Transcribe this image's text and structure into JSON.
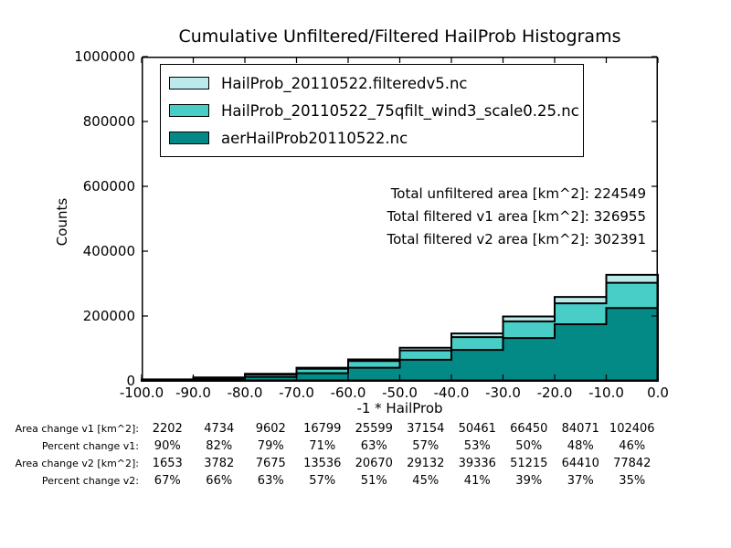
{
  "title": "Cumulative Unfiltered/Filtered HailProb Histograms",
  "chart_data": {
    "type": "area",
    "subtype": "cumulative-step-histograms-overlaid",
    "title": "Cumulative Unfiltered/Filtered HailProb Histograms",
    "xlabel": "-1 * HailProb",
    "ylabel": "Counts",
    "xlim": [
      -100.0,
      0.0
    ],
    "ylim": [
      0,
      1000000
    ],
    "grid": false,
    "legend_position": "upper-left-inside",
    "bin_edges": [
      -100,
      -90,
      -80,
      -70,
      -60,
      -50,
      -40,
      -30,
      -20,
      -10,
      0
    ],
    "x_ticks": [
      "-100.0",
      "-90.0",
      "-80.0",
      "-70.0",
      "-60.0",
      "-50.0",
      "-40.0",
      "-30.0",
      "-20.0",
      "-10.0",
      "0.0"
    ],
    "y_ticks": [
      "0",
      "200000",
      "400000",
      "600000",
      "800000",
      "1000000"
    ],
    "y_tick_values": [
      0,
      200000,
      400000,
      600000,
      800000,
      1000000
    ],
    "series": [
      {
        "id": "filtered-v1",
        "label": "HailProb_20110522.filteredv5.nc",
        "color": "#bce9ec",
        "edge_color": "#000000",
        "values": [
          4650,
          10500,
          21800,
          40500,
          66200,
          102200,
          146000,
          198600,
          258700,
          326955
        ]
      },
      {
        "id": "filtered-v2",
        "label": "HailProb_20110522_75qfilt_wind3_scale0.25.nc",
        "color": "#48cdc7",
        "edge_color": "#000000",
        "values": [
          4100,
          9530,
          19850,
          37240,
          61250,
          94130,
          134800,
          183300,
          239000,
          302391
        ]
      },
      {
        "id": "unfiltered",
        "label": "aerHailProb20110522.nc",
        "color": "#038a87",
        "edge_color": "#000000",
        "values": [
          2450,
          5750,
          12170,
          23700,
          40580,
          65000,
          95500,
          132100,
          174600,
          224549
        ]
      }
    ],
    "annotations": [
      "Total unfiltered area [km^2]: 224549",
      "Total filtered v1 area [km^2]: 326955",
      "Total filtered v2 area [km^2]: 302391"
    ]
  },
  "table": {
    "rows": [
      {
        "label": "Area change v1 [km^2]:",
        "values": [
          "2202",
          "4734",
          "9602",
          "16799",
          "25599",
          "37154",
          "50461",
          "66450",
          "84071",
          "102406"
        ]
      },
      {
        "label": "Percent change v1:",
        "values": [
          "90%",
          "82%",
          "79%",
          "71%",
          "63%",
          "57%",
          "53%",
          "50%",
          "48%",
          "46%"
        ]
      },
      {
        "label": "Area change v2 [km^2]:",
        "values": [
          "1653",
          "3782",
          "7675",
          "13536",
          "20670",
          "29132",
          "39336",
          "51215",
          "64410",
          "77842"
        ]
      },
      {
        "label": "Percent change v2:",
        "values": [
          "67%",
          "66%",
          "63%",
          "57%",
          "51%",
          "45%",
          "41%",
          "39%",
          "37%",
          "35%"
        ]
      }
    ]
  }
}
